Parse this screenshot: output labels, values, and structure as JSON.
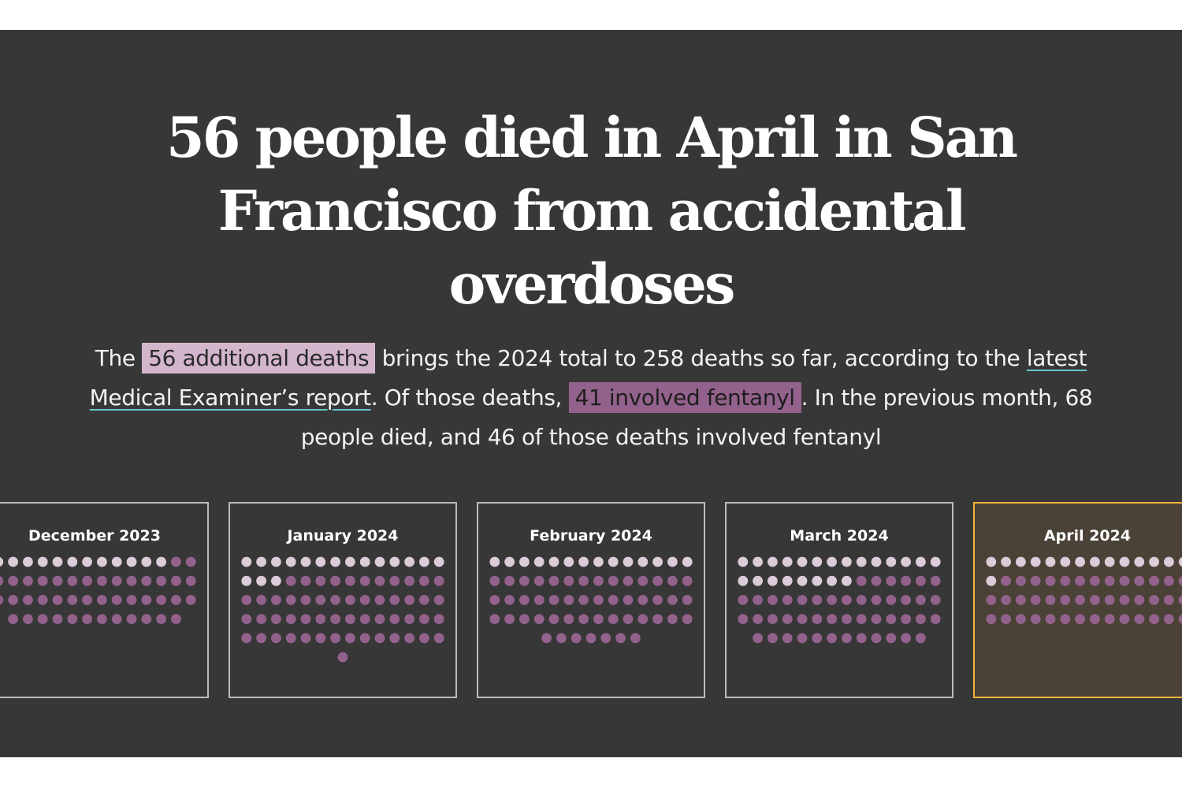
{
  "headline": "56 people died in April in San Francisco from accidental overdoses",
  "subhead": {
    "part1": "The ",
    "highlight1": "56 additional deaths",
    "part2": " brings the 2024 total to 258 deaths so far, according to the ",
    "link": "latest Medical Examiner’s report",
    "part3": ". Of those deaths, ",
    "highlight2": "41 involved fentanyl",
    "part4": ". In the previous month, 68 people died, and 46 of those deaths involved fentanyl"
  },
  "colors": {
    "background": "#373737",
    "non_fentanyl_dot": "#dccbd8",
    "fentanyl_dot": "#93628c",
    "highlight_border": "#f2b33a",
    "card_border": "#bcbcbc",
    "link_underline": "#66c6cc"
  },
  "chart_data": {
    "type": "dot-matrix",
    "months": [
      {
        "label": "December 2023",
        "total": 54,
        "fentanyl": 42,
        "highlighted": false
      },
      {
        "label": "January 2024",
        "total": 71,
        "fentanyl": 54,
        "highlighted": false
      },
      {
        "label": "February 2024",
        "total": 63,
        "fentanyl": 49,
        "highlighted": false
      },
      {
        "label": "March 2024",
        "total": 68,
        "fentanyl": 46,
        "highlighted": false
      },
      {
        "label": "April 2024",
        "total": 56,
        "fentanyl": 41,
        "highlighted": true
      }
    ]
  }
}
